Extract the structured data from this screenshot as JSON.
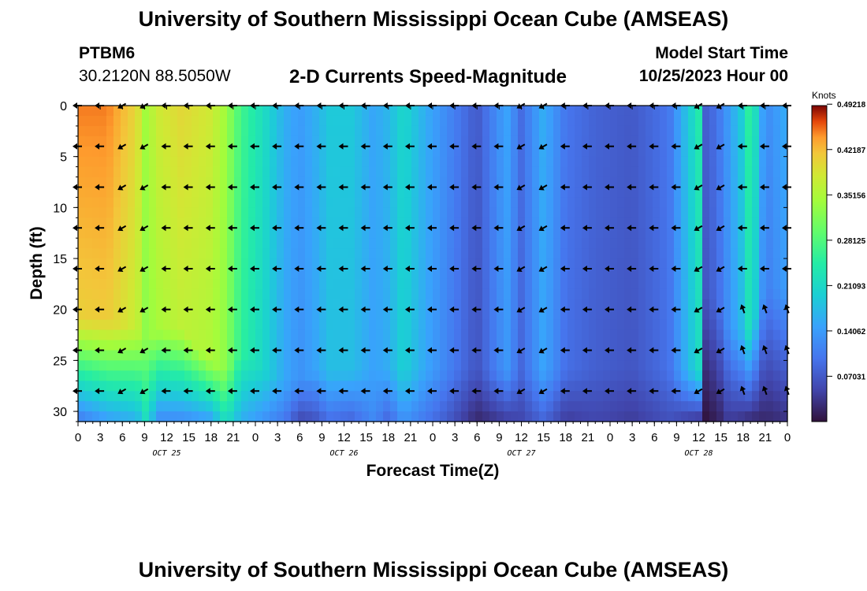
{
  "header": {
    "title": "University of Southern Mississippi Ocean Cube (AMSEAS)",
    "station": "PTBM6",
    "coords": "30.2120N  88.5050W",
    "subtitle": "2-D Currents Speed-Magnitude",
    "model_start_label": "Model Start Time",
    "model_start_value": "10/25/2023 Hour 00"
  },
  "footer": {
    "title_repeat": "University of Southern Mississippi Ocean Cube (AMSEAS)"
  },
  "chart_data": {
    "type": "heatmap",
    "title": "2-D Currents Speed-Magnitude",
    "xlabel": "Forecast Time(Z)",
    "ylabel": "Depth (ft)",
    "x_range": [
      0,
      96
    ],
    "y_range": [
      0,
      31
    ],
    "x_ticks": [
      0,
      3,
      6,
      9,
      12,
      15,
      18,
      21,
      24,
      27,
      30,
      33,
      36,
      39,
      42,
      45,
      48,
      51,
      54,
      57,
      60,
      63,
      66,
      69,
      72,
      75,
      78,
      81,
      84,
      87,
      90,
      93,
      96
    ],
    "x_tick_labels": [
      "0",
      "3",
      "6",
      "9",
      "12",
      "15",
      "18",
      "21",
      "0",
      "3",
      "6",
      "9",
      "12",
      "15",
      "18",
      "21",
      "0",
      "3",
      "6",
      "9",
      "12",
      "15",
      "18",
      "21",
      "0",
      "3",
      "6",
      "9",
      "12",
      "15",
      "18",
      "21",
      "0"
    ],
    "day_labels": [
      {
        "x": 12,
        "label": "OCT 25"
      },
      {
        "x": 36,
        "label": "OCT 26"
      },
      {
        "x": 60,
        "label": "OCT 27"
      },
      {
        "x": 84,
        "label": "OCT 28"
      }
    ],
    "y_ticks": [
      0,
      5,
      10,
      15,
      20,
      25,
      30
    ],
    "colorbar": {
      "unit": "Knots",
      "min": 0,
      "max": 0.49,
      "tick_labels": [
        "0.49218",
        "0.42187",
        "0.35156",
        "0.28125",
        "0.21093",
        "0.14062",
        "0.07031"
      ],
      "tick_values": [
        0.49218,
        0.42187,
        0.35156,
        0.28125,
        0.21093,
        0.14062,
        0.07031
      ]
    },
    "vector_times": [
      0,
      3,
      6,
      9,
      12,
      15,
      18,
      21,
      24,
      27,
      30,
      33,
      36,
      39,
      42,
      45,
      48,
      51,
      54,
      57,
      60,
      63,
      66,
      69,
      72,
      75,
      78,
      81,
      84,
      87,
      90,
      93,
      96
    ],
    "vector_depths": [
      0,
      4,
      8,
      12,
      16,
      20,
      24,
      28
    ],
    "speed_profile": {
      "times": [
        0,
        4,
        8,
        9,
        11,
        14,
        18,
        20,
        22,
        25,
        28,
        30,
        32,
        34,
        37,
        40,
        42,
        44,
        47,
        50,
        54,
        58,
        60,
        63,
        66,
        70,
        75,
        80,
        84,
        85,
        87,
        88,
        90,
        91,
        93,
        96
      ],
      "surface": [
        0.45,
        0.45,
        0.4,
        0.34,
        0.38,
        0.4,
        0.38,
        0.34,
        0.27,
        0.22,
        0.16,
        0.14,
        0.16,
        0.19,
        0.19,
        0.15,
        0.17,
        0.21,
        0.16,
        0.12,
        0.07,
        0.15,
        0.09,
        0.16,
        0.1,
        0.08,
        0.07,
        0.1,
        0.24,
        0.07,
        0.11,
        0.14,
        0.2,
        0.27,
        0.12,
        0.16
      ],
      "bottom": [
        0.1,
        0.14,
        0.16,
        0.22,
        0.12,
        0.12,
        0.14,
        0.22,
        0.16,
        0.13,
        0.1,
        0.05,
        0.06,
        0.09,
        0.08,
        0.12,
        0.08,
        0.13,
        0.1,
        0.07,
        0.02,
        0.04,
        0.05,
        0.08,
        0.04,
        0.05,
        0.04,
        0.06,
        0.03,
        0.0,
        0.02,
        0.04,
        0.03,
        0.02,
        0.02,
        0.03
      ],
      "deep_drop": [
        21,
        21,
        22,
        23,
        22,
        22,
        25,
        26,
        24,
        26,
        27,
        27,
        26,
        26,
        26,
        26,
        26,
        26,
        26,
        26,
        26,
        26,
        26,
        26,
        26,
        26,
        26,
        26,
        26,
        18,
        20,
        22,
        22,
        22,
        18,
        18
      ]
    }
  }
}
